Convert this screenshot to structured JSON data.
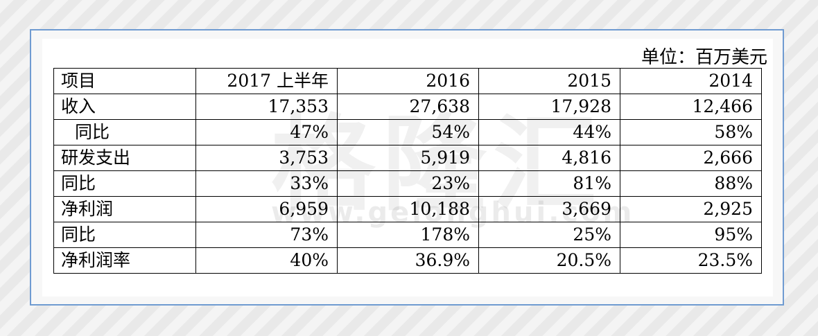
{
  "unit": "单位：百万美元",
  "watermark": {
    "brand": "格隆汇",
    "url": "www.gelonghui.com"
  },
  "table": {
    "header": [
      "项目",
      "2017 上半年",
      "2016",
      "2015",
      "2014"
    ],
    "rows": [
      [
        "收入",
        "17,353",
        "27,638",
        "17,928",
        "12,466"
      ],
      [
        "同比",
        "47%",
        "54%",
        "44%",
        "58%"
      ],
      [
        "研发支出",
        "3,753",
        "5,919",
        "4,816",
        "2,666"
      ],
      [
        "同比",
        "33%",
        "23%",
        "81%",
        "88%"
      ],
      [
        "净利润",
        "6,959",
        "10,188",
        "3,669",
        "2,925"
      ],
      [
        "同比",
        "73%",
        "178%",
        "25%",
        "95%"
      ],
      [
        "净利润率",
        "40%",
        "36.9%",
        "20.5%",
        "23.5%"
      ]
    ]
  }
}
